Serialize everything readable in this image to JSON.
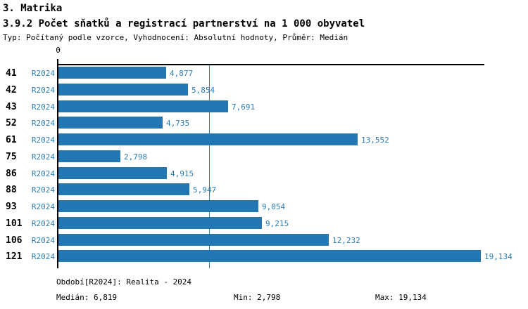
{
  "header": {
    "section_title": "3. Matrika",
    "title": "3.9.2 Počet sňatků a registrací partnerství na 1 000 obyvatel",
    "meta": "Typ: Počítaný podle vzorce, Vyhodnocení: Absolutní hodnoty, Průměr: Medián"
  },
  "chart_data": {
    "type": "bar",
    "orientation": "horizontal",
    "title": "3.9.2 Počet sňatků a registrací partnerství na 1 000 obyvatel",
    "series_label": "R2024",
    "categories": [
      "41",
      "42",
      "43",
      "52",
      "61",
      "75",
      "86",
      "88",
      "93",
      "101",
      "106",
      "121"
    ],
    "values": [
      4877,
      5854,
      7691,
      4735,
      13552,
      2798,
      4915,
      5947,
      9054,
      9215,
      12232,
      19134
    ],
    "value_labels": [
      "4,877",
      "5,854",
      "7,691",
      "4,735",
      "13,552",
      "2,798",
      "4,915",
      "5,947",
      "9,054",
      "9,215",
      "12,232",
      "19,134"
    ],
    "axis_zero_label": "0",
    "xlim": [
      0,
      19300
    ],
    "median": 6819,
    "min": 2798,
    "max": 19134,
    "grid": false,
    "legend": "none",
    "annotations": [
      "median reference line at 6,819"
    ]
  },
  "footer": {
    "period": "Období[R2024]: Realita - 2024",
    "median": "Medián: 6,819",
    "min": "Min: 2,798",
    "max": "Max: 19,134"
  },
  "colors": {
    "bar": "#2378b4",
    "accent_text": "#2b7db8",
    "axis": "#000000",
    "background": "#ffffff"
  }
}
